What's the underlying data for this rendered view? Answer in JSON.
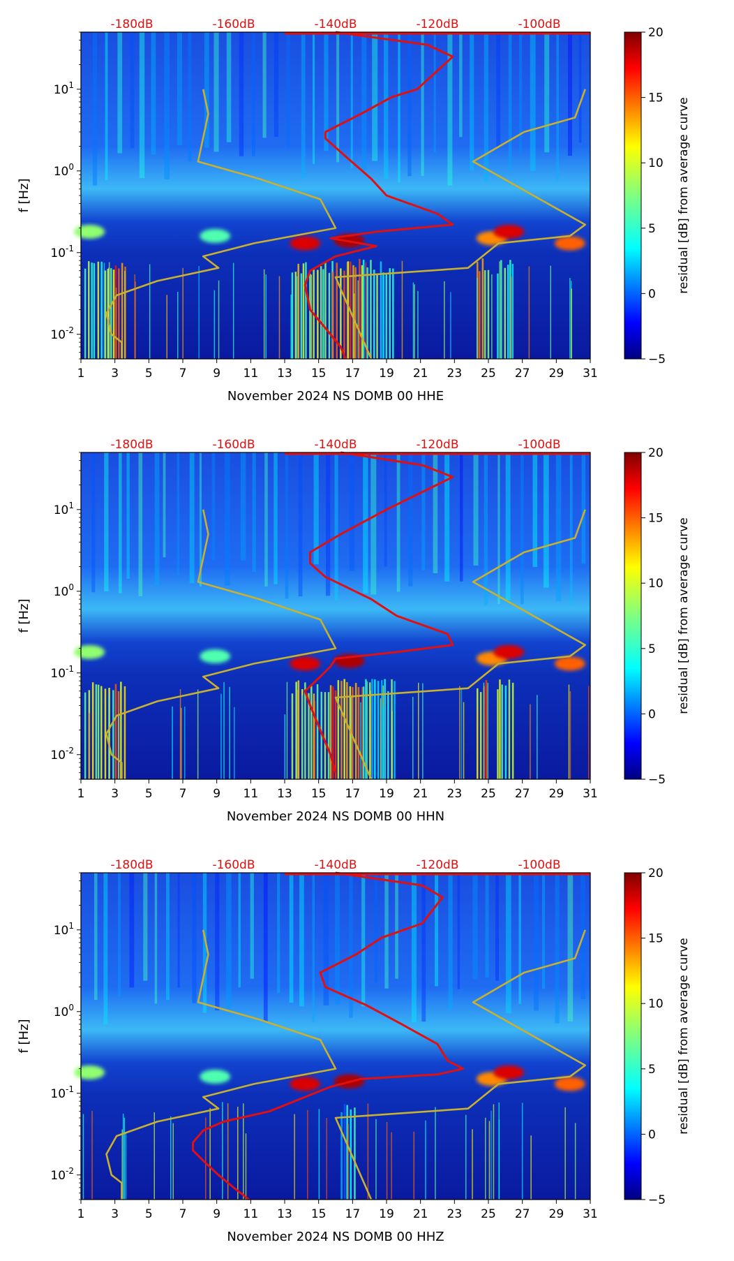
{
  "chart_data": [
    {
      "type": "heatmap",
      "subtype": "spectrogram residual",
      "component": "HHE",
      "xlabel": "November 2024 NS DOMB 00 HHE",
      "ylabel": "f [Hz]",
      "x_range": [
        1,
        31
      ],
      "x_ticks": [
        1,
        3,
        5,
        7,
        9,
        11,
        13,
        15,
        17,
        19,
        21,
        23,
        25,
        27,
        29,
        31
      ],
      "y_range_hz": [
        0.005,
        50
      ],
      "y_scale": "log",
      "y_ticks": [
        {
          "value": 0.01,
          "label": "10^-2"
        },
        {
          "value": 0.1,
          "label": "10^-1"
        },
        {
          "value": 1,
          "label": "10^0"
        },
        {
          "value": 10,
          "label": "10^1"
        }
      ],
      "top_axis_labels": [
        "-180dB",
        "-160dB",
        "-140dB",
        "-120dB",
        "-100dB"
      ],
      "colorbar": {
        "label": "residual [dB] from average curve",
        "min": -5,
        "max": 20,
        "ticks": [
          -5,
          0,
          5,
          10,
          15,
          20
        ]
      },
      "series": [
        {
          "name": "station noise curve (dB)",
          "color": "#e01010",
          "points": [
            [
              50,
              -140
            ],
            [
              35,
              -122
            ],
            [
              25,
              -117
            ],
            [
              10,
              -124
            ],
            [
              8,
              -129
            ],
            [
              5,
              -135
            ],
            [
              3,
              -142
            ],
            [
              2.5,
              -142
            ],
            [
              1.5,
              -138
            ],
            [
              0.8,
              -133
            ],
            [
              0.5,
              -130
            ],
            [
              0.3,
              -120
            ],
            [
              0.22,
              -117
            ],
            [
              0.18,
              -132
            ],
            [
              0.15,
              -141
            ],
            [
              0.12,
              -132
            ],
            [
              0.09,
              -140
            ],
            [
              0.06,
              -145
            ],
            [
              0.04,
              -146
            ],
            [
              0.02,
              -145
            ],
            [
              0.01,
              -141
            ],
            [
              0.007,
              -139
            ],
            [
              0.005,
              -138
            ]
          ]
        },
        {
          "name": "noise model low (dB)",
          "color": "#c8b030",
          "points": [
            [
              10,
              -166
            ],
            [
              5,
              -165
            ],
            [
              1.3,
              -167
            ],
            [
              0.8,
              -155
            ],
            [
              0.45,
              -143
            ],
            [
              0.2,
              -140
            ],
            [
              0.13,
              -156
            ],
            [
              0.09,
              -166
            ],
            [
              0.065,
              -163
            ],
            [
              0.045,
              -175
            ],
            [
              0.03,
              -183
            ],
            [
              0.018,
              -185
            ],
            [
              0.01,
              -184
            ],
            [
              0.008,
              -182
            ],
            [
              0.005,
              -182
            ]
          ]
        },
        {
          "name": "noise model high (dB)",
          "color": "#c8b030",
          "points": [
            [
              10,
              -91
            ],
            [
              4.5,
              -93
            ],
            [
              3,
              -103
            ],
            [
              1.3,
              -113
            ],
            [
              0.22,
              -91
            ],
            [
              0.16,
              -94
            ],
            [
              0.13,
              -108
            ],
            [
              0.065,
              -114
            ],
            [
              0.05,
              -140
            ],
            [
              0.005,
              -133
            ]
          ]
        }
      ]
    },
    {
      "type": "heatmap",
      "subtype": "spectrogram residual",
      "component": "HHN",
      "xlabel": "November 2024 NS DOMB 00 HHN",
      "ylabel": "f [Hz]",
      "x_range": [
        1,
        31
      ],
      "x_ticks": [
        1,
        3,
        5,
        7,
        9,
        11,
        13,
        15,
        17,
        19,
        21,
        23,
        25,
        27,
        29,
        31
      ],
      "y_range_hz": [
        0.005,
        50
      ],
      "y_scale": "log",
      "y_ticks": [
        {
          "value": 0.01,
          "label": "10^-2"
        },
        {
          "value": 0.1,
          "label": "10^-1"
        },
        {
          "value": 1,
          "label": "10^0"
        },
        {
          "value": 10,
          "label": "10^1"
        }
      ],
      "top_axis_labels": [
        "-180dB",
        "-160dB",
        "-140dB",
        "-120dB",
        "-100dB"
      ],
      "colorbar": {
        "label": "residual [dB] from average curve",
        "min": -5,
        "max": 20,
        "ticks": [
          -5,
          0,
          5,
          10,
          15,
          20
        ]
      },
      "series": [
        {
          "name": "station noise curve (dB)",
          "color": "#e01010",
          "points": [
            [
              50,
              -139
            ],
            [
              35,
              -123
            ],
            [
              25,
              -117
            ],
            [
              10,
              -130
            ],
            [
              5,
              -139
            ],
            [
              3,
              -145
            ],
            [
              2.2,
              -145
            ],
            [
              1.5,
              -142
            ],
            [
              0.8,
              -133
            ],
            [
              0.5,
              -128
            ],
            [
              0.3,
              -118
            ],
            [
              0.22,
              -117
            ],
            [
              0.18,
              -128
            ],
            [
              0.15,
              -140
            ],
            [
              0.12,
              -141
            ],
            [
              0.09,
              -143
            ],
            [
              0.06,
              -146
            ],
            [
              0.04,
              -145
            ],
            [
              0.02,
              -143
            ],
            [
              0.01,
              -141
            ],
            [
              0.006,
              -140
            ]
          ]
        },
        {
          "name": "noise model low (dB)",
          "color": "#c8b030",
          "points": [
            [
              10,
              -166
            ],
            [
              5,
              -165
            ],
            [
              1.3,
              -167
            ],
            [
              0.8,
              -155
            ],
            [
              0.45,
              -143
            ],
            [
              0.2,
              -140
            ],
            [
              0.13,
              -156
            ],
            [
              0.09,
              -166
            ],
            [
              0.065,
              -163
            ],
            [
              0.045,
              -175
            ],
            [
              0.03,
              -183
            ],
            [
              0.018,
              -185
            ],
            [
              0.01,
              -184
            ],
            [
              0.008,
              -182
            ],
            [
              0.005,
              -182
            ]
          ]
        },
        {
          "name": "noise model high (dB)",
          "color": "#c8b030",
          "points": [
            [
              10,
              -91
            ],
            [
              4.5,
              -93
            ],
            [
              3,
              -103
            ],
            [
              1.3,
              -113
            ],
            [
              0.22,
              -91
            ],
            [
              0.16,
              -94
            ],
            [
              0.13,
              -108
            ],
            [
              0.065,
              -114
            ],
            [
              0.05,
              -140
            ],
            [
              0.005,
              -133
            ]
          ]
        }
      ]
    },
    {
      "type": "heatmap",
      "subtype": "spectrogram residual",
      "component": "HHZ",
      "xlabel": "November 2024 NS DOMB 00 HHZ",
      "ylabel": "f [Hz]",
      "x_range": [
        1,
        31
      ],
      "x_ticks": [
        1,
        3,
        5,
        7,
        9,
        11,
        13,
        15,
        17,
        19,
        21,
        23,
        25,
        27,
        29,
        31
      ],
      "y_range_hz": [
        0.005,
        50
      ],
      "y_scale": "log",
      "y_ticks": [
        {
          "value": 0.01,
          "label": "10^-2"
        },
        {
          "value": 0.1,
          "label": "10^-1"
        },
        {
          "value": 1,
          "label": "10^0"
        },
        {
          "value": 10,
          "label": "10^1"
        }
      ],
      "top_axis_labels": [
        "-180dB",
        "-160dB",
        "-140dB",
        "-120dB",
        "-100dB"
      ],
      "colorbar": {
        "label": "residual [dB] from average curve",
        "min": -5,
        "max": 20,
        "ticks": [
          -5,
          0,
          5,
          10,
          15,
          20
        ]
      },
      "series": [
        {
          "name": "station noise curve (dB)",
          "color": "#e01010",
          "points": [
            [
              50,
              -140
            ],
            [
              35,
              -123
            ],
            [
              25,
              -119
            ],
            [
              12,
              -123
            ],
            [
              8,
              -131
            ],
            [
              5,
              -136
            ],
            [
              3,
              -143
            ],
            [
              2,
              -142
            ],
            [
              1.2,
              -134
            ],
            [
              0.7,
              -127
            ],
            [
              0.4,
              -120
            ],
            [
              0.25,
              -118
            ],
            [
              0.2,
              -115
            ],
            [
              0.17,
              -120
            ],
            [
              0.15,
              -135
            ],
            [
              0.12,
              -141
            ],
            [
              0.09,
              -146
            ],
            [
              0.06,
              -153
            ],
            [
              0.045,
              -162
            ],
            [
              0.035,
              -166
            ],
            [
              0.025,
              -168
            ],
            [
              0.02,
              -168
            ],
            [
              0.015,
              -166
            ],
            [
              0.01,
              -163
            ],
            [
              0.007,
              -160
            ],
            [
              0.005,
              -157
            ]
          ]
        },
        {
          "name": "noise model low (dB)",
          "color": "#c8b030",
          "points": [
            [
              10,
              -166
            ],
            [
              5,
              -165
            ],
            [
              1.3,
              -167
            ],
            [
              0.8,
              -155
            ],
            [
              0.45,
              -143
            ],
            [
              0.2,
              -140
            ],
            [
              0.13,
              -156
            ],
            [
              0.09,
              -166
            ],
            [
              0.065,
              -163
            ],
            [
              0.045,
              -175
            ],
            [
              0.03,
              -183
            ],
            [
              0.018,
              -185
            ],
            [
              0.01,
              -184
            ],
            [
              0.008,
              -182
            ],
            [
              0.005,
              -182
            ]
          ]
        },
        {
          "name": "noise model high (dB)",
          "color": "#c8b030",
          "points": [
            [
              10,
              -91
            ],
            [
              4.5,
              -93
            ],
            [
              3,
              -103
            ],
            [
              1.3,
              -113
            ],
            [
              0.22,
              -91
            ],
            [
              0.16,
              -94
            ],
            [
              0.13,
              -108
            ],
            [
              0.065,
              -114
            ],
            [
              0.05,
              -140
            ],
            [
              0.005,
              -133
            ]
          ]
        }
      ]
    }
  ]
}
